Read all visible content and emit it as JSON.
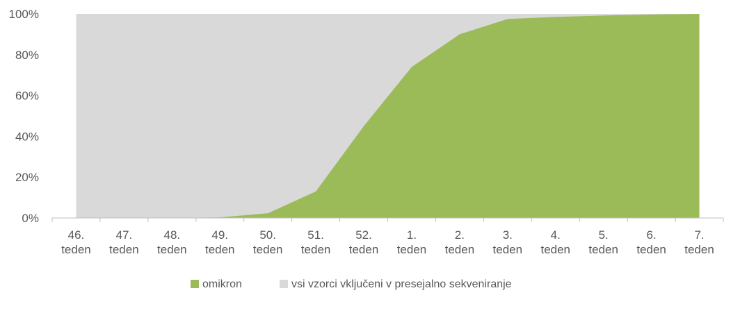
{
  "chart_data": {
    "type": "area",
    "categories": [
      [
        "46.",
        "teden"
      ],
      [
        "47.",
        "teden"
      ],
      [
        "48.",
        "teden"
      ],
      [
        "49.",
        "teden"
      ],
      [
        "50.",
        "teden"
      ],
      [
        "51.",
        "teden"
      ],
      [
        "52.",
        "teden"
      ],
      [
        "1.",
        "teden"
      ],
      [
        "2.",
        "teden"
      ],
      [
        "3.",
        "teden"
      ],
      [
        "4.",
        "teden"
      ],
      [
        "5.",
        "teden"
      ],
      [
        "6.",
        "teden"
      ],
      [
        "7.",
        "teden"
      ]
    ],
    "series": [
      {
        "name": "omikron",
        "color": "#9BBB59",
        "values": [
          0,
          0,
          0,
          0.3,
          2.3,
          13,
          45,
          74,
          90,
          97.5,
          98.5,
          99.2,
          99.7,
          100
        ]
      },
      {
        "name": "vsi vzorci vključeni v presejalno sekveniranje",
        "color": "#D9D9D9",
        "values": [
          100,
          100,
          100,
          100,
          100,
          100,
          100,
          100,
          100,
          100,
          100,
          100,
          100,
          100
        ]
      }
    ],
    "ylim": [
      0,
      100
    ],
    "yticks": [
      "0%",
      "20%",
      "40%",
      "60%",
      "80%",
      "100%"
    ],
    "grid": false,
    "legend": "bottom",
    "title": "",
    "xlabel": "",
    "ylabel": ""
  }
}
